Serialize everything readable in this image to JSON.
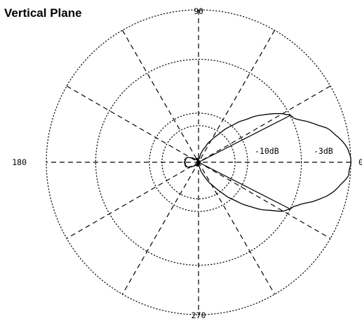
{
  "title": "Vertical Plane",
  "chart_data": {
    "type": "polar",
    "title": "Vertical Plane",
    "angle_labels": [
      {
        "angle": 90,
        "text": "90"
      },
      {
        "angle": 180,
        "text": "180"
      },
      {
        "angle": 0,
        "text": "0"
      },
      {
        "angle": 270,
        "text": "270"
      }
    ],
    "grid": {
      "rings": [
        -10,
        -3
      ],
      "spoke_step_deg": 30,
      "range_db": [
        -20,
        0
      ],
      "scale": "log-like"
    },
    "ring_labels": [
      {
        "level": -10,
        "text": "-10dB"
      },
      {
        "level": -3,
        "text": "-3dB"
      }
    ],
    "series": [
      {
        "pattern": [
          {
            "angle": 0,
            "level": 0.0
          },
          {
            "angle": 5,
            "level": -0.1
          },
          {
            "angle": 10,
            "level": -0.5
          },
          {
            "angle": 15,
            "level": -1.1
          },
          {
            "angle": 20,
            "level": -2.0
          },
          {
            "angle": 25,
            "level": -2.9
          },
          {
            "angle": 27,
            "level": -3.0
          },
          {
            "angle": 30,
            "level": -3.4
          },
          {
            "angle": 35,
            "level": -4.5
          },
          {
            "angle": 40,
            "level": -5.8
          },
          {
            "angle": 45,
            "level": -7.2
          },
          {
            "angle": 50,
            "level": -8.8
          },
          {
            "angle": 55,
            "level": -10.5
          },
          {
            "angle": 60,
            "level": -12.0
          },
          {
            "angle": 70,
            "level": -15.0
          },
          {
            "angle": 80,
            "level": -18.0
          },
          {
            "angle": 90,
            "level": -20.0
          },
          {
            "angle": 120,
            "level": -20.0
          },
          {
            "angle": 140,
            "level": -17.5
          },
          {
            "angle": 160,
            "level": -15.0
          },
          {
            "angle": 180,
            "level": -14.8
          },
          {
            "angle": 200,
            "level": -15.0
          },
          {
            "angle": 220,
            "level": -17.5
          },
          {
            "angle": 240,
            "level": -20.0
          },
          {
            "angle": 270,
            "level": -20.0
          },
          {
            "angle": 280,
            "level": -18.0
          },
          {
            "angle": 290,
            "level": -15.0
          },
          {
            "angle": 300,
            "level": -12.0
          },
          {
            "angle": 305,
            "level": -10.5
          },
          {
            "angle": 310,
            "level": -8.8
          },
          {
            "angle": 315,
            "level": -7.2
          },
          {
            "angle": 320,
            "level": -5.8
          },
          {
            "angle": 325,
            "level": -4.5
          },
          {
            "angle": 330,
            "level": -3.4
          },
          {
            "angle": 333,
            "level": -3.0
          },
          {
            "angle": 335,
            "level": -2.9
          },
          {
            "angle": 340,
            "level": -2.0
          },
          {
            "angle": 345,
            "level": -1.1
          },
          {
            "angle": 350,
            "level": -0.5
          },
          {
            "angle": 355,
            "level": -0.1
          }
        ],
        "beamwidth_markers": [
          27,
          333
        ],
        "marker_level": -3.0
      }
    ]
  }
}
